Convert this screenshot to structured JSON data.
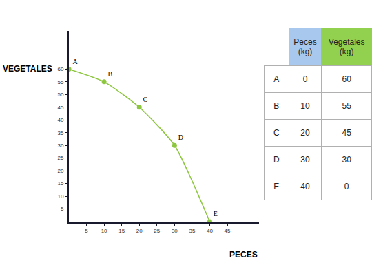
{
  "chart_data": {
    "type": "line",
    "x": [
      0,
      10,
      20,
      30,
      40
    ],
    "values": [
      60,
      55,
      45,
      30,
      0
    ],
    "point_labels": [
      "A",
      "B",
      "C",
      "D",
      "E"
    ],
    "x_label": "PECES",
    "y_label": "VEGETALES",
    "color": "#8dc63f",
    "marker": "circle",
    "line_style": "solid",
    "xlim": [
      0,
      54
    ],
    "ylim": [
      0,
      75
    ],
    "xticks": [
      5,
      10,
      15,
      20,
      25,
      30,
      35,
      40,
      45
    ],
    "yticks": [
      5,
      10,
      15,
      20,
      25,
      30,
      35,
      40,
      45,
      50,
      55,
      60
    ],
    "grid": false
  },
  "table": {
    "header": [
      "",
      "Peces (kg)",
      "Vegetales (kg)"
    ],
    "rows": [
      [
        "A",
        "0",
        "60"
      ],
      [
        "B",
        "10",
        "55"
      ],
      [
        "C",
        "20",
        "45"
      ],
      [
        "D",
        "30",
        "30"
      ],
      [
        "E",
        "40",
        "0"
      ]
    ]
  }
}
